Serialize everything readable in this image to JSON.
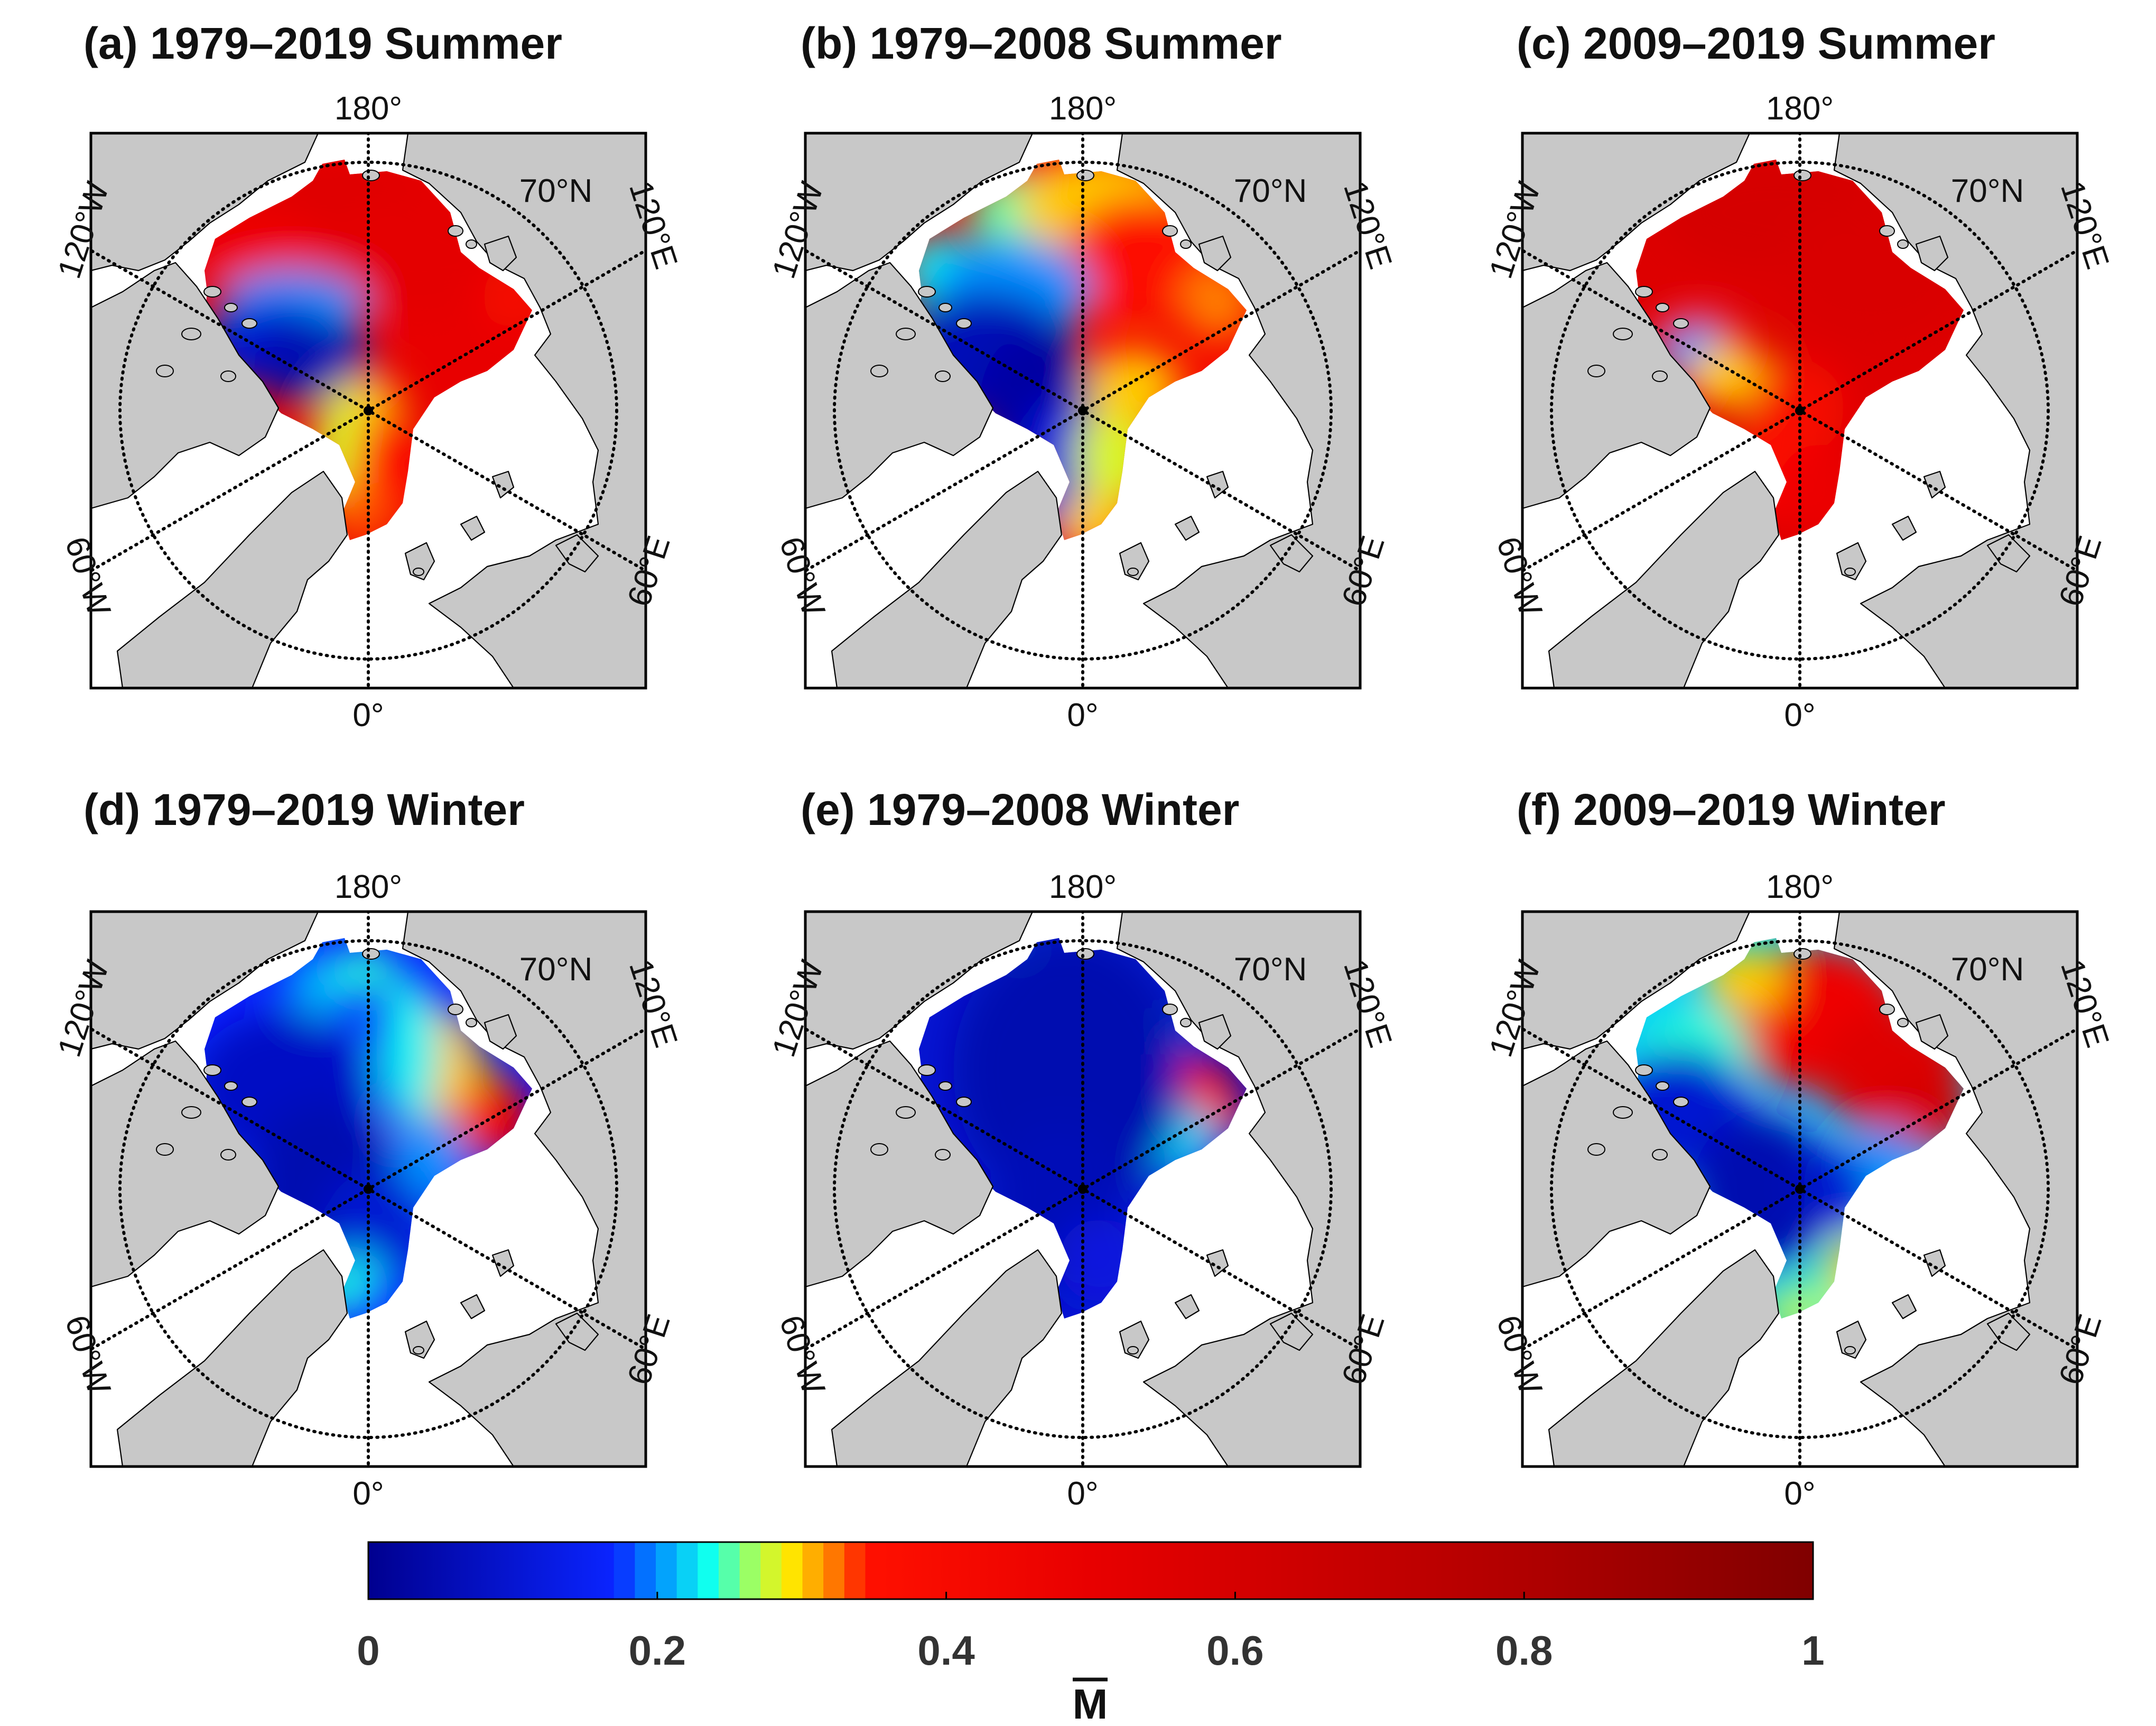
{
  "figure": {
    "panels": [
      {
        "id": "a",
        "title": "(a) 1979–2019 Summer",
        "pattern": "summer-all"
      },
      {
        "id": "b",
        "title": "(b) 1979–2008 Summer",
        "pattern": "summer-early"
      },
      {
        "id": "c",
        "title": "(c) 2009–2019 Summer",
        "pattern": "summer-late"
      },
      {
        "id": "d",
        "title": "(d) 1979–2019 Winter",
        "pattern": "winter-all"
      },
      {
        "id": "e",
        "title": "(e) 1979–2008 Winter",
        "pattern": "winter-early"
      },
      {
        "id": "f",
        "title": "(f) 2009–2019 Winter",
        "pattern": "winter-late"
      }
    ],
    "map_labels": {
      "lon_180": "180°",
      "lon_0": "0°",
      "lon_120w": "120°W",
      "lon_120e": "120°E",
      "lon_60w": "60°W",
      "lon_60e": "60°E",
      "lat_70n": "70°N"
    },
    "colors": {
      "land": "#c8c8c8",
      "ocean": "#ffffff",
      "frame": "#000000",
      "grid": "#000000"
    },
    "colorbar": {
      "min": 0,
      "max": 1,
      "ticks": [
        {
          "value": 0,
          "label": "0"
        },
        {
          "value": 0.2,
          "label": "0.2"
        },
        {
          "value": 0.4,
          "label": "0.4"
        },
        {
          "value": 0.6,
          "label": "0.6"
        },
        {
          "value": 0.8,
          "label": "0.8"
        },
        {
          "value": 1,
          "label": "1"
        }
      ],
      "label": "M",
      "stops": [
        {
          "value": 0.0,
          "color": "#00008f"
        },
        {
          "value": 0.17,
          "color": "#0a24ff"
        },
        {
          "value": 0.2,
          "color": "#0090ff"
        },
        {
          "value": 0.235,
          "color": "#10ffef"
        },
        {
          "value": 0.265,
          "color": "#a0ff60"
        },
        {
          "value": 0.29,
          "color": "#ffef00"
        },
        {
          "value": 0.32,
          "color": "#ff8000"
        },
        {
          "value": 0.345,
          "color": "#ff1000"
        },
        {
          "value": 0.5,
          "color": "#e80000"
        },
        {
          "value": 0.8,
          "color": "#b00000"
        },
        {
          "value": 1.0,
          "color": "#800000"
        }
      ]
    }
  }
}
